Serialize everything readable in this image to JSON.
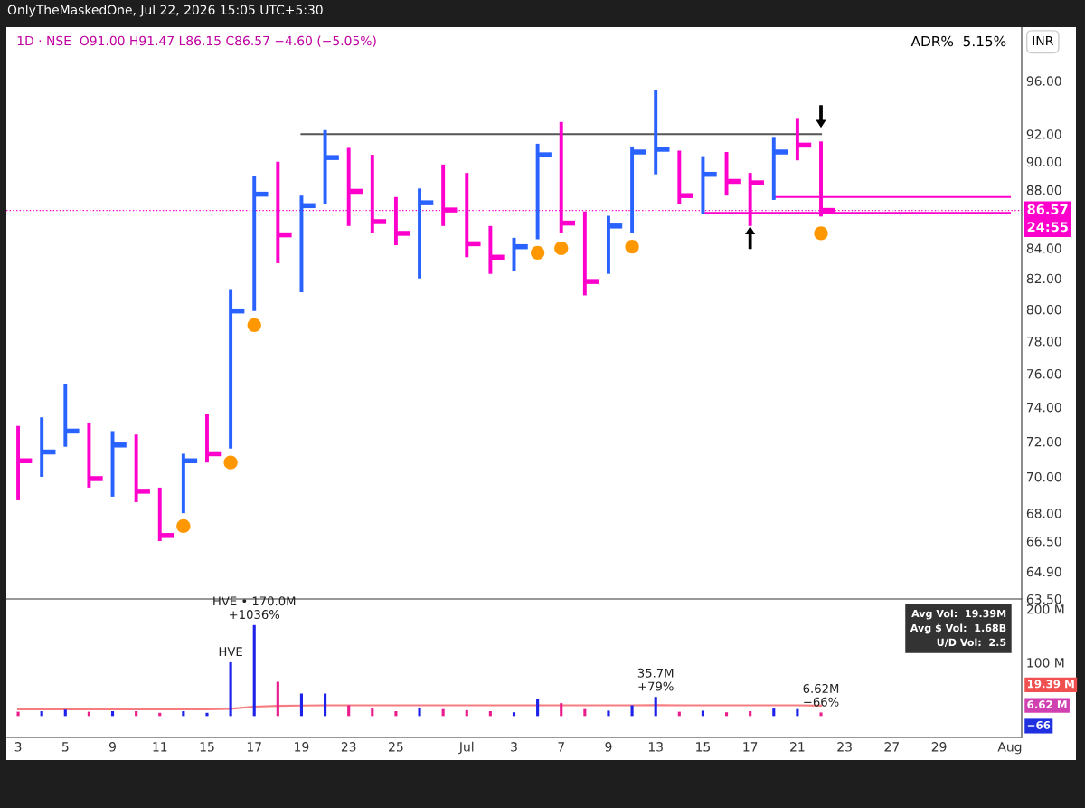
{
  "chart_data": [
    {
      "type": "bar",
      "title": "1D · NSE  O91.00 H91.47 L86.15 C86.57 −4.60 (−5.05%)",
      "categories": [
        null,
        null,
        null,
        null,
        null,
        null,
        null,
        null,
        null,
        null,
        null,
        null,
        null,
        null,
        null,
        null,
        null,
        null,
        null,
        null,
        null,
        null,
        null,
        null,
        null,
        null,
        null,
        null,
        null,
        null,
        null,
        null,
        null,
        null,
        null,
        null,
        null,
        null,
        null,
        null,
        null,
        null,
        null
      ],
      "base": [
        68.7,
        70.0,
        71.7,
        69.4,
        68.9,
        68.6,
        66.5,
        68.0,
        70.8,
        71.6,
        79.9,
        83.0,
        81.1,
        87.0,
        85.5,
        85.0,
        84.2,
        82.0,
        85.5,
        83.4,
        82.3,
        82.5,
        84.6,
        85.0,
        80.9,
        82.3,
        85.0,
        89.1,
        87.0,
        86.3,
        87.6,
        85.5,
        87.3,
        90.1,
        86.15,
        null,
        null,
        null,
        null,
        null,
        null,
        null,
        null
      ],
      "values": [
        4.2,
        3.4,
        3.7,
        3.7,
        3.7,
        3.8,
        2.9,
        3.3,
        2.8,
        9.7,
        9.1,
        7.0,
        6.5,
        5.3,
        5.5,
        5.5,
        3.3,
        6.1,
        4.3,
        5.8,
        3.2,
        2.2,
        6.7,
        7.9,
        5.6,
        3.9,
        6.1,
        6.2,
        3.8,
        4.1,
        3.1,
        3.7,
        4.5,
        3.1,
        5.32,
        null,
        null,
        null,
        null,
        null,
        null,
        null,
        null
      ],
      "colors": [
        "#ff00cc",
        "#2962ff",
        "#2962ff",
        "#ff00cc",
        "#2962ff",
        "#ff00cc",
        "#ff00cc",
        "#2962ff",
        "#ff00cc",
        "#2962ff",
        "#2962ff",
        "#ff00cc",
        "#2962ff",
        "#2962ff",
        "#ff00cc",
        "#ff00cc",
        "#ff00cc",
        "#2962ff",
        "#ff00cc",
        "#ff00cc",
        "#ff00cc",
        "#2962ff",
        "#2962ff",
        "#ff00cc",
        "#ff00cc",
        "#2962ff",
        "#2962ff",
        "#2962ff",
        "#ff00cc",
        "#2962ff",
        "#ff00cc",
        "#ff00cc",
        "#2962ff",
        "#ff00cc",
        "#ff00cc",
        null,
        null,
        null,
        null,
        null,
        null,
        null,
        null
      ],
      "series": [
        {
          "type": "scatter",
          "marker": "square",
          "colors": [
            "#ff00cc",
            "#2962ff",
            "#2962ff",
            "#ff00cc",
            "#2962ff",
            "#ff00cc",
            "#ff00cc",
            "#2962ff",
            "#ff00cc",
            "#2962ff",
            "#2962ff",
            "#ff00cc",
            "#2962ff",
            "#2962ff",
            "#ff00cc",
            "#ff00cc",
            "#ff00cc",
            "#2962ff",
            "#ff00cc",
            "#ff00cc",
            "#ff00cc",
            "#2962ff",
            "#2962ff",
            "#ff00cc",
            "#ff00cc",
            "#2962ff",
            "#2962ff",
            "#2962ff",
            "#ff00cc",
            "#2962ff",
            "#ff00cc",
            "#ff00cc",
            "#2962ff",
            "#ff00cc",
            "#ff00cc",
            null,
            null,
            null,
            null,
            null,
            null,
            null,
            null
          ],
          "values": [
            70.9,
            71.4,
            72.6,
            69.9,
            71.8,
            69.2,
            66.8,
            70.9,
            71.3,
            79.9,
            87.7,
            84.9,
            86.9,
            90.3,
            87.9,
            85.8,
            85.0,
            87.1,
            86.6,
            84.3,
            83.4,
            84.1,
            90.5,
            85.7,
            81.8,
            85.5,
            90.7,
            90.9,
            87.6,
            89.1,
            88.6,
            88.5,
            90.7,
            91.2,
            86.57,
            null,
            null,
            null,
            null,
            null,
            null,
            null,
            null
          ]
        },
        {
          "type": "scatter",
          "color": "#ff9800",
          "values": [
            null,
            null,
            null,
            null,
            null,
            null,
            null,
            67.3,
            null,
            70.8,
            79.0,
            null,
            null,
            null,
            null,
            null,
            null,
            null,
            null,
            null,
            null,
            null,
            83.7,
            84.0,
            null,
            null,
            84.1,
            null,
            null,
            null,
            null,
            null,
            null,
            null,
            85.0,
            null,
            null,
            null,
            null,
            null,
            null,
            null,
            null
          ]
        },
        {
          "type": "scatter",
          "marker": "triangle",
          "color": "#000000",
          "values": [
            null,
            null,
            null,
            null,
            null,
            null,
            null,
            null,
            null,
            null,
            null,
            null,
            null,
            null,
            null,
            null,
            null,
            null,
            null,
            null,
            null,
            null,
            null,
            null,
            null,
            null,
            null,
            null,
            null,
            null,
            null,
            84.7,
            null,
            null,
            93.3,
            null,
            null,
            null,
            null,
            null,
            null,
            null,
            null
          ]
        },
        {
          "type": "line",
          "color": "#555555",
          "values": [
            null,
            null,
            null,
            null,
            null,
            null,
            null,
            null,
            null,
            null,
            null,
            null,
            92.0,
            92.0,
            92.0,
            92.0,
            92.0,
            92.0,
            92.0,
            92.0,
            92.0,
            92.0,
            92.0,
            92.0,
            92.0,
            92.0,
            92.0,
            92.0,
            92.0,
            92.0,
            92.0,
            92.0,
            92.0,
            92.0,
            92.0,
            null,
            null,
            null,
            null,
            null,
            null,
            null,
            null
          ]
        },
        {
          "type": "line",
          "color": "#ff00cc",
          "values": [
            null,
            null,
            null,
            null,
            null,
            null,
            null,
            null,
            null,
            null,
            null,
            null,
            null,
            null,
            null,
            null,
            null,
            null,
            null,
            null,
            null,
            null,
            null,
            null,
            null,
            null,
            null,
            null,
            null,
            null,
            null,
            null,
            87.5,
            87.5,
            87.5,
            87.5,
            87.5,
            87.5,
            87.5,
            87.5,
            87.5,
            87.5,
            87.5
          ]
        },
        {
          "type": "line",
          "color": "#ff00cc",
          "values": [
            null,
            null,
            null,
            null,
            null,
            null,
            null,
            null,
            null,
            null,
            null,
            null,
            null,
            null,
            null,
            null,
            null,
            null,
            null,
            null,
            null,
            null,
            null,
            null,
            null,
            null,
            null,
            null,
            null,
            86.4,
            86.4,
            86.4,
            86.4,
            86.4,
            86.4,
            86.4,
            86.4,
            86.4,
            86.4,
            86.4,
            86.4,
            86.4,
            86.4
          ]
        }
      ],
      "log": true,
      "ylim": [
        63.5,
        100.2
      ],
      "yticks": [
        {
          "value": 63.5,
          "label": "63.50"
        },
        {
          "value": 64.9,
          "label": "64.90"
        },
        {
          "value": 66.5,
          "label": "66.50"
        },
        {
          "value": 68,
          "label": "68.00"
        },
        {
          "value": 70,
          "label": "70.00"
        },
        {
          "value": 72,
          "label": "72.00"
        },
        {
          "value": 74,
          "label": "74.00"
        },
        {
          "value": 76,
          "label": "76.00"
        },
        {
          "value": 78,
          "label": "78.00"
        },
        {
          "value": 80,
          "label": "80.00"
        },
        {
          "value": 82,
          "label": "82.00"
        },
        {
          "value": 84,
          "label": "84.00"
        },
        {
          "value": 88,
          "label": "88.00"
        },
        {
          "value": 90,
          "label": "90.00"
        },
        {
          "value": 92,
          "label": "92.00"
        },
        {
          "value": 96,
          "label": "96.00"
        }
      ],
      "ref_lines": [
        {
          "axis": "y",
          "value": 86.57,
          "label": "86.57",
          "color": "#ff00cc",
          "line_style": "dotted"
        }
      ],
      "annotations": [
        "OnlyTheMaskedOne, Jul 22, 2026 15:05 UTC+5:30",
        "ADR%  5.15%",
        "INR",
        "24:55"
      ],
      "tick_labels": "y"
    },
    {
      "type": "bar",
      "categories": [
        "3",
        null,
        "5",
        null,
        "9",
        null,
        "11",
        null,
        "15",
        null,
        "17",
        null,
        "19",
        null,
        "23",
        null,
        "25",
        null,
        null,
        "Jul",
        null,
        "3",
        null,
        "7",
        null,
        "9",
        null,
        "13",
        null,
        "15",
        null,
        "17",
        null,
        "21",
        null,
        "23",
        null,
        "27",
        null,
        "29",
        null,
        null,
        "Aug"
      ],
      "values": [
        8,
        9,
        12,
        8,
        9,
        9,
        6,
        9,
        6,
        100.5,
        170.0,
        64,
        42,
        42,
        20,
        14,
        9,
        16,
        13,
        11,
        9,
        7,
        32,
        24,
        13,
        10,
        20,
        35.7,
        8,
        10,
        7,
        9,
        14,
        13,
        6.62,
        null,
        null,
        null,
        null,
        null,
        null,
        null,
        null
      ],
      "colors": [
        "#e91e8c",
        "#1e22e8",
        "#1e22e8",
        "#e91e8c",
        "#1e22e8",
        "#e91e8c",
        "#e91e8c",
        "#1e22e8",
        "#1e22e8",
        "#1e22e8",
        "#1e22e8",
        "#e91e8c",
        "#1e22e8",
        "#1e22e8",
        "#e91e8c",
        "#e91e8c",
        "#e91e8c",
        "#1e22e8",
        "#e91e8c",
        "#e91e8c",
        "#e91e8c",
        "#1e22e8",
        "#1e22e8",
        "#e91e8c",
        "#e91e8c",
        "#1e22e8",
        "#1e22e8",
        "#1e22e8",
        "#e91e8c",
        "#1e22e8",
        "#e91e8c",
        "#e91e8c",
        "#1e22e8",
        "#1e22e8",
        "#e91e8c",
        null,
        null,
        null,
        null,
        null,
        null,
        null,
        null
      ],
      "series": [
        {
          "type": "line",
          "color": "#f77c80",
          "values": [
            12.5,
            12.5,
            12.5,
            12.5,
            12.5,
            12.5,
            12.5,
            12.5,
            12.5,
            13.5,
            17.5,
            19,
            19.5,
            20,
            20,
            20,
            20,
            20,
            20,
            20,
            20,
            20,
            20,
            20,
            20,
            20,
            20,
            20.5,
            20,
            20,
            20,
            20,
            20,
            20,
            19.39,
            null,
            null,
            null,
            null,
            null,
            null,
            null,
            null
          ]
        }
      ],
      "ylim": [
        -40,
        217
      ],
      "yticks": [
        {
          "value": 100,
          "label": "100 M"
        },
        {
          "value": 200,
          "label": "200 M"
        }
      ],
      "annotations": [
        "Avg Vol:  19.39M",
        "Avg $ Vol:  1.68B",
        "U/D Vol:  2.5",
        "19.39 M",
        "6.62 M",
        "−66",
        {
          "text": "HVE",
          "y": 100.5
        },
        {
          "text": "HVE • 170.0M\n+1036%",
          "x": "17",
          "y": 170.0
        },
        {
          "text": "35.7M\n+79%",
          "x": "13",
          "y": 35.7
        },
        {
          "text": "6.62M\n−66%",
          "y": 6.62
        }
      ]
    }
  ]
}
